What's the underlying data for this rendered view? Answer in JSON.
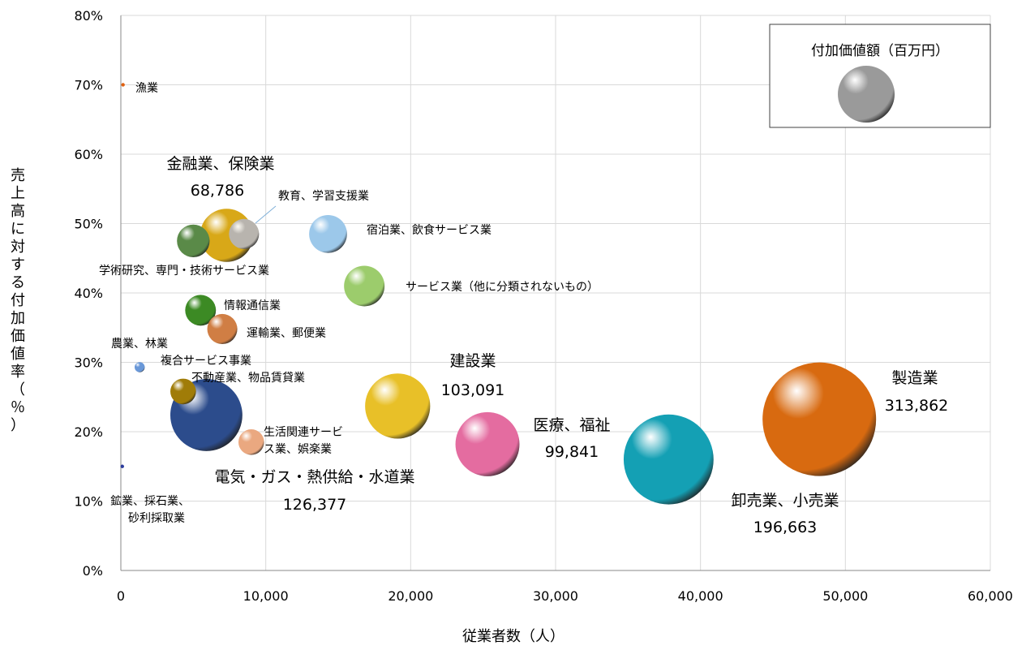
{
  "chart_data": {
    "type": "bubble",
    "xlabel": "従業者数（人）",
    "ylabel": "売上高に対する付加価値率（％）",
    "xlim": [
      0,
      60000
    ],
    "ylim": [
      0,
      80
    ],
    "x_ticks": [
      "0",
      "10,000",
      "20,000",
      "30,000",
      "40,000",
      "50,000",
      "60,000"
    ],
    "y_ticks": [
      "0%",
      "10%",
      "20%",
      "30%",
      "40%",
      "50%",
      "60%",
      "70%",
      "80%"
    ],
    "grid": true,
    "legend": {
      "title": "付加価値額（百万円）",
      "placement": "top-right"
    },
    "series": [
      {
        "name": "漁業",
        "x": 150,
        "y": 70,
        "size": 200,
        "color": "#e06010",
        "labels": [
          "漁業"
        ],
        "value_label": ""
      },
      {
        "name": "金融業、保険業",
        "x": 7300,
        "y": 48.3,
        "size": 68786,
        "color": "#d8a818",
        "labels": [
          "金融業、保険業"
        ],
        "value_label": "68,786"
      },
      {
        "name": "教育、学習支援業",
        "x": 8500,
        "y": 48.5,
        "size": 22000,
        "color": "#b8b4ae",
        "labels": [
          "教育、学習支援業"
        ],
        "value_label": ""
      },
      {
        "name": "学術研究、専門・技術サービス業",
        "x": 5000,
        "y": 47.5,
        "size": 26000,
        "color": "#5a8a48",
        "labels": [
          "学術研究、専門・技術サービス業"
        ],
        "value_label": ""
      },
      {
        "name": "宿泊業、飲食サービス業",
        "x": 14300,
        "y": 48.5,
        "size": 35000,
        "color": "#9cc8ea",
        "labels": [
          "宿泊業、飲食サービス業"
        ],
        "value_label": ""
      },
      {
        "name": "サービス業（他に分類されないもの）",
        "x": 16800,
        "y": 41,
        "size": 40000,
        "color": "#9ccc6c",
        "labels": [
          "サービス業（他に分類されないもの）"
        ],
        "value_label": ""
      },
      {
        "name": "情報通信業",
        "x": 5500,
        "y": 37.5,
        "size": 23000,
        "color": "#3c8a24",
        "labels": [
          "情報通信業"
        ],
        "value_label": ""
      },
      {
        "name": "運輸業、郵便業",
        "x": 7000,
        "y": 34.8,
        "size": 22000,
        "color": "#d07e44",
        "labels": [
          "運輸業、郵便業"
        ],
        "value_label": ""
      },
      {
        "name": "農業、林業",
        "x": 1300,
        "y": 29.3,
        "size": 2500,
        "color": "#6a98d8",
        "labels": [
          "農業、林業"
        ],
        "value_label": ""
      },
      {
        "name": "複合サービス事業",
        "x": 1300,
        "y": 29.3,
        "size": 0,
        "color": "#6a98d8",
        "labels": [
          "複合サービス事業"
        ],
        "value_label": ""
      },
      {
        "name": "不動産業、物品賃貸業",
        "x": 4300,
        "y": 25.8,
        "size": 16000,
        "color": "#a07c08",
        "labels": [
          "不動産業、物品賃貸業"
        ],
        "value_label": ""
      },
      {
        "name": "電気・ガス・熱供給・水道業",
        "x": 5900,
        "y": 22.4,
        "size": 126377,
        "color": "#2c4c8c",
        "labels": [
          "電気・ガス・熱供給・水道業"
        ],
        "value_label": "126,377"
      },
      {
        "name": "生活関連サービス業、娯楽業",
        "x": 9000,
        "y": 18.5,
        "size": 16000,
        "color": "#eaa880",
        "labels": [
          "生活関連サービ",
          "ス業、娯楽業"
        ],
        "value_label": ""
      },
      {
        "name": "鉱業、採石業、砂利採取業",
        "x": 100,
        "y": 15,
        "size": 200,
        "color": "#2c3c9c",
        "labels": [
          "鉱業、採石業、",
          "砂利採取業"
        ],
        "value_label": ""
      },
      {
        "name": "建設業",
        "x": 19100,
        "y": 23.7,
        "size": 103091,
        "color": "#e8c028",
        "labels": [
          "建設業"
        ],
        "value_label": "103,091"
      },
      {
        "name": "医療、福祉",
        "x": 25300,
        "y": 18.2,
        "size": 99841,
        "color": "#e46ca0",
        "labels": [
          "医療、福祉"
        ],
        "value_label": "99,841"
      },
      {
        "name": "卸売業、小売業",
        "x": 37800,
        "y": 16,
        "size": 196663,
        "color": "#14a0b4",
        "labels": [
          "卸売業、小売業"
        ],
        "value_label": "196,663"
      },
      {
        "name": "製造業",
        "x": 48200,
        "y": 21.8,
        "size": 313862,
        "color": "#d86a10",
        "labels": [
          "製造業"
        ],
        "value_label": "313,862"
      }
    ]
  }
}
